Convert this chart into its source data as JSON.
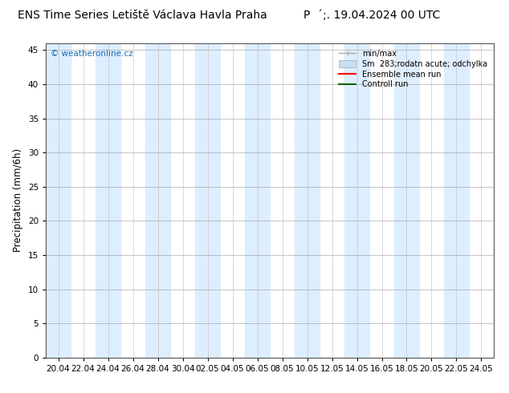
{
  "title_left": "ENS Time Series Letiště Václava Havla Praha",
  "title_right": "P´acute;. 19.04.2024 00 UTC",
  "ylabel": "Precipitation (mm/6h)",
  "ylim": [
    0,
    46
  ],
  "yticks": [
    0,
    5,
    10,
    15,
    20,
    25,
    30,
    35,
    40,
    45
  ],
  "xtick_labels": [
    "20.04",
    "22.04",
    "24.04",
    "26.04",
    "28.04",
    "30.04",
    "02.05",
    "04.05",
    "06.05",
    "08.05",
    "10.05",
    "12.05",
    "14.05",
    "16.05",
    "18.05",
    "20.05",
    "22.05",
    "24.05"
  ],
  "background_color": "#ffffff",
  "stripe_color": "#ddeeff",
  "watermark": "© weatheronline.cz",
  "title_fontsize": 10,
  "axis_fontsize": 8.5,
  "tick_fontsize": 7.5
}
